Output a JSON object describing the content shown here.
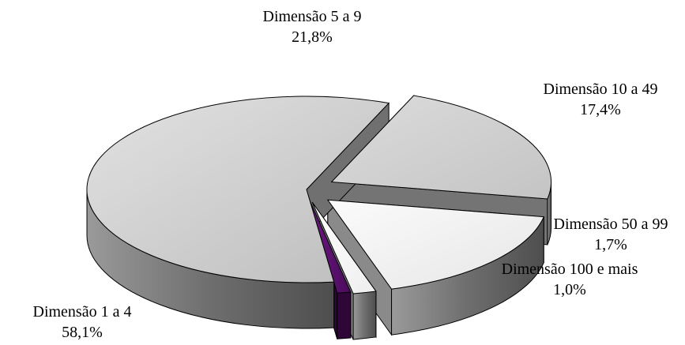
{
  "chart_data": {
    "type": "pie",
    "style": "3d-exploded",
    "title": "",
    "slices": [
      {
        "label": "Dimensão 1 a 4",
        "value": 58.1,
        "value_label": "58,1%",
        "top_color": "#cbcbcb",
        "side_color": "#707070"
      },
      {
        "label": "Dimensão 5 a 9",
        "value": 21.8,
        "value_label": "21,8%",
        "top_color": "#d3d3d3",
        "side_color": "#747474"
      },
      {
        "label": "Dimensão 10 a 49",
        "value": 17.4,
        "value_label": "17,4%",
        "top_color": "#f2f2f2",
        "side_color": "#8a8a8a"
      },
      {
        "label": "Dimensão 50 a 99",
        "value": 1.7,
        "value_label": "1,7%",
        "top_color": "#f7f7f7",
        "side_color": "#8c8c8c"
      },
      {
        "label": "Dimensão 100 e mais",
        "value": 1.0,
        "value_label": "1,0%",
        "top_color": "#5a0f6e",
        "side_color": "#2e0638"
      }
    ]
  }
}
